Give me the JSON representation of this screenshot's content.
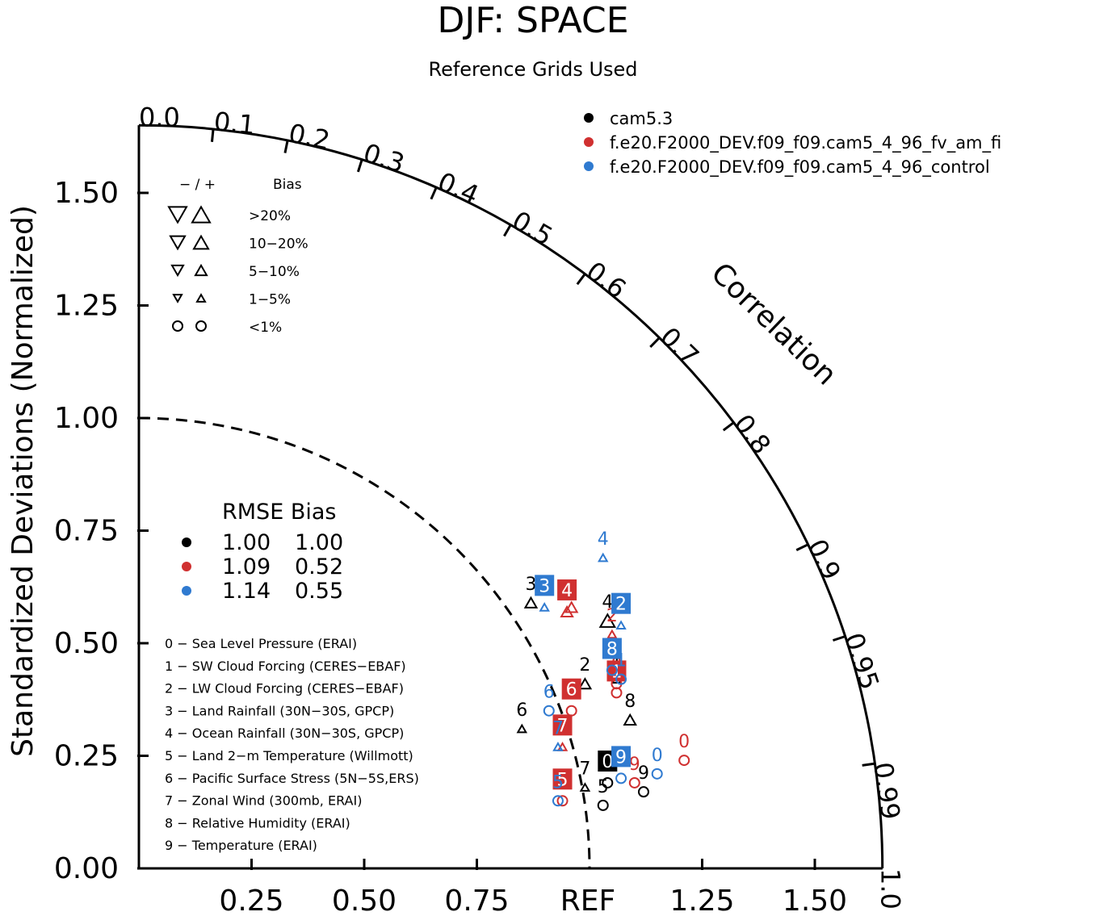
{
  "chart_data": {
    "type": "scatter",
    "title": "DJF: SPACE",
    "subtitle": "Reference Grids Used",
    "ylabel": "Standardized Deviations (Normalized)",
    "corr_label": "Correlation",
    "ref_label": "REF",
    "std_max": 1.65,
    "y_ticks": [
      "0.00",
      "0.25",
      "0.50",
      "0.75",
      "1.00",
      "1.25",
      "1.50"
    ],
    "x_ticks": [
      "0.25",
      "0.50",
      "0.75",
      "1.25",
      "1.50"
    ],
    "corr_ticks": [
      "0.0",
      "0.1",
      "0.2",
      "0.3",
      "0.4",
      "0.5",
      "0.6",
      "0.7",
      "0.8",
      "0.9",
      "0.95",
      "0.99",
      "1.0"
    ],
    "series": [
      {
        "name": "cam5.3",
        "color": "#000000",
        "rmse": "1.00",
        "bias": "1.00",
        "points": [
          {
            "id": 0,
            "x": 1.04,
            "y": 0.19,
            "bias_class": "<1%",
            "highlight": true
          },
          {
            "id": 1,
            "x": 1.06,
            "y": 0.42,
            "bias_class": "1-5%"
          },
          {
            "id": 2,
            "x": 0.99,
            "y": 0.41,
            "bias_class": "5-10%"
          },
          {
            "id": 3,
            "x": 0.87,
            "y": 0.59,
            "bias_class": "5-10%"
          },
          {
            "id": 4,
            "x": 1.04,
            "y": 0.55,
            "bias_class": "10-20%"
          },
          {
            "id": 5,
            "x": 1.03,
            "y": 0.14,
            "bias_class": "<1%"
          },
          {
            "id": 6,
            "x": 0.85,
            "y": 0.31,
            "bias_class": "1-5%"
          },
          {
            "id": 7,
            "x": 0.99,
            "y": 0.18,
            "bias_class": "1-5%"
          },
          {
            "id": 8,
            "x": 1.09,
            "y": 0.33,
            "bias_class": "5-10%"
          },
          {
            "id": 9,
            "x": 1.12,
            "y": 0.17,
            "bias_class": "<1%"
          }
        ]
      },
      {
        "name": "f.e20.F2000_DEV.f09_f09.cam5_4_96_fv_am_fi",
        "color": "#d03030",
        "rmse": "1.09",
        "bias": "0.52",
        "points": [
          {
            "id": 0,
            "x": 1.21,
            "y": 0.24,
            "bias_class": "<1%"
          },
          {
            "id": 1,
            "x": 1.06,
            "y": 0.39,
            "bias_class": "<1%",
            "highlight": true
          },
          {
            "id": 2,
            "x": 1.05,
            "y": 0.52,
            "bias_class": "1-5%"
          },
          {
            "id": 3,
            "x": 0.96,
            "y": 0.58,
            "bias_class": "5-10%"
          },
          {
            "id": 4,
            "x": 0.95,
            "y": 0.57,
            "bias_class": "5-10%",
            "highlight": true
          },
          {
            "id": 5,
            "x": 0.94,
            "y": 0.15,
            "bias_class": "<1%",
            "highlight": true
          },
          {
            "id": 6,
            "x": 0.96,
            "y": 0.35,
            "bias_class": "<1%",
            "highlight": true
          },
          {
            "id": 7,
            "x": 0.94,
            "y": 0.27,
            "bias_class": "1-5%",
            "highlight": true
          },
          {
            "id": 8,
            "x": 1.06,
            "y": 0.41,
            "bias_class": "<1%"
          },
          {
            "id": 9,
            "x": 1.1,
            "y": 0.19,
            "bias_class": "<1%"
          }
        ]
      },
      {
        "name": "f.e20.F2000_DEV.f09_f09.cam5_4_96_control",
        "color": "#2f7ad0",
        "rmse": "1.14",
        "bias": "0.55",
        "points": [
          {
            "id": 0,
            "x": 1.15,
            "y": 0.21,
            "bias_class": "<1%"
          },
          {
            "id": 1,
            "x": 1.07,
            "y": 0.42,
            "bias_class": "<1%"
          },
          {
            "id": 2,
            "x": 1.07,
            "y": 0.54,
            "bias_class": "1-5%",
            "highlight": true
          },
          {
            "id": 3,
            "x": 0.9,
            "y": 0.58,
            "bias_class": "1-5%",
            "highlight": true
          },
          {
            "id": 4,
            "x": 1.03,
            "y": 0.69,
            "bias_class": "1-5%"
          },
          {
            "id": 5,
            "x": 0.93,
            "y": 0.15,
            "bias_class": "<1%"
          },
          {
            "id": 6,
            "x": 0.91,
            "y": 0.35,
            "bias_class": "<1%"
          },
          {
            "id": 7,
            "x": 0.93,
            "y": 0.27,
            "bias_class": "1-5%"
          },
          {
            "id": 8,
            "x": 1.05,
            "y": 0.44,
            "bias_class": "<1%",
            "highlight": true
          },
          {
            "id": 9,
            "x": 1.07,
            "y": 0.2,
            "bias_class": "<1%",
            "highlight": true
          }
        ]
      }
    ],
    "rmse_table": {
      "header": "RMSE Bias"
    },
    "bias_legend": {
      "header_sign": "− / +",
      "header_label": "Bias",
      "rows": [
        ">20%",
        "10−20%",
        "5−10%",
        "1−5%",
        "<1%"
      ]
    },
    "variables": [
      "0 − Sea Level Pressure (ERAI)",
      "1 − SW Cloud Forcing (CERES−EBAF)",
      "2 − LW Cloud Forcing (CERES−EBAF)",
      "3 − Land Rainfall (30N−30S, GPCP)",
      "4 − Ocean Rainfall (30N−30S, GPCP)",
      "5 − Land 2−m Temperature (Willmott)",
      "6 − Pacific Surface Stress (5N−5S,ERS)",
      "7 − Zonal Wind (300mb, ERAI)",
      "8 − Relative Humidity (ERAI)",
      "9 − Temperature (ERAI)"
    ]
  }
}
